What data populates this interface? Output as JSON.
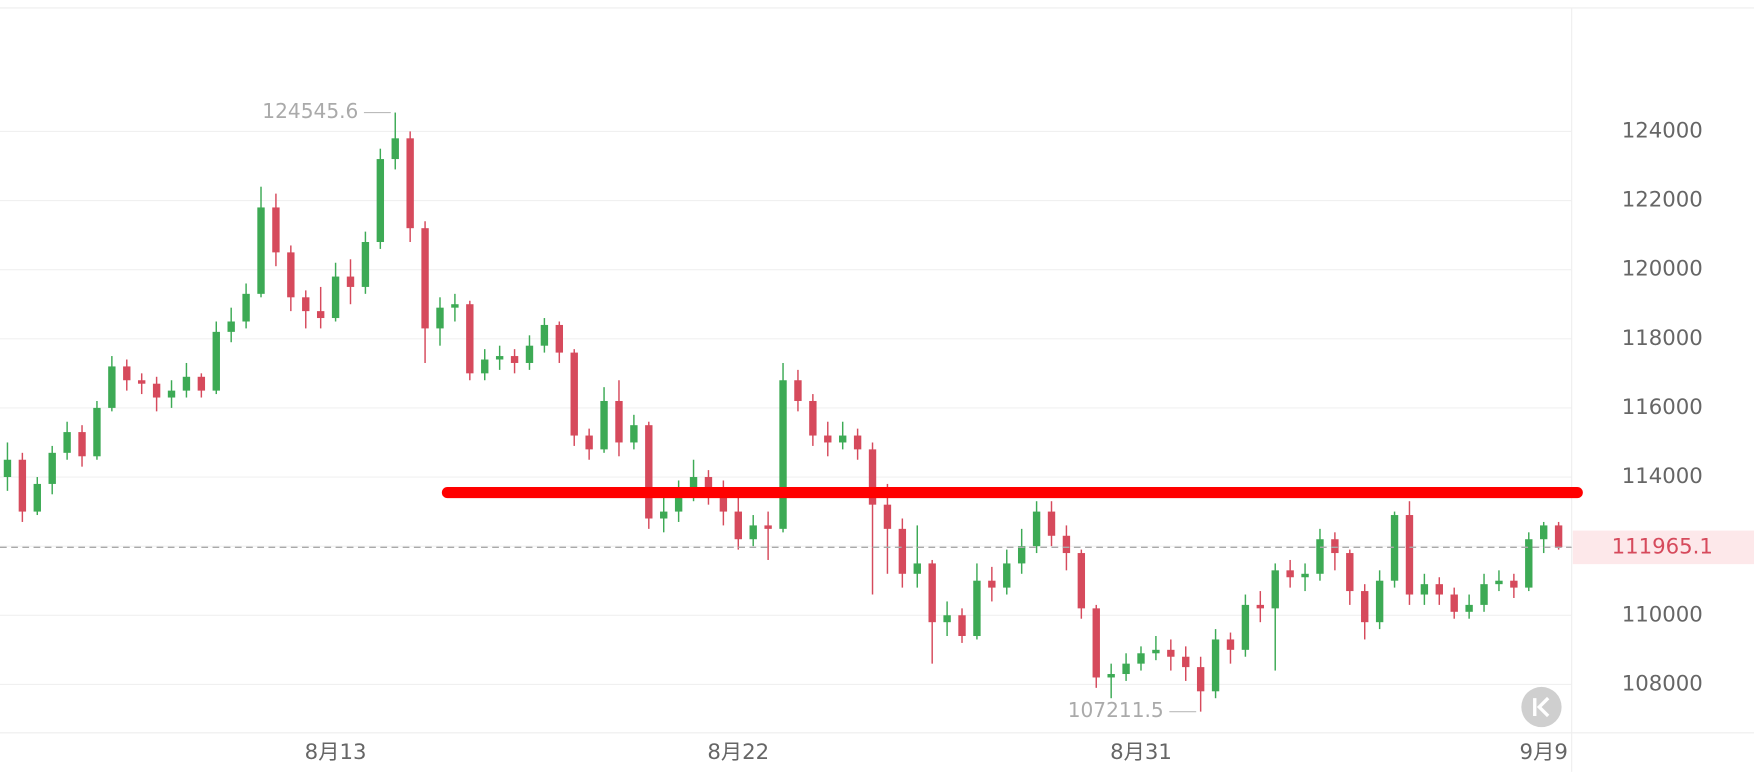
{
  "chart_data": {
    "type": "candlestick",
    "up_color": "#3daa55",
    "down_color": "#d64a5c",
    "ylim": [
      106600,
      127800
    ],
    "yticks": [
      108000,
      110000,
      112000,
      114000,
      116000,
      118000,
      120000,
      122000,
      124000
    ],
    "grid": true,
    "categories": [
      null,
      null,
      null,
      null,
      null,
      null,
      null,
      null,
      null,
      null,
      null,
      null,
      null,
      null,
      null,
      null,
      null,
      null,
      null,
      null,
      null,
      null,
      "8月13",
      null,
      null,
      null,
      null,
      null,
      null,
      null,
      null,
      null,
      null,
      null,
      null,
      null,
      null,
      null,
      null,
      null,
      null,
      null,
      null,
      null,
      null,
      null,
      null,
      null,
      null,
      "8月22",
      null,
      null,
      null,
      null,
      null,
      null,
      null,
      null,
      null,
      null,
      null,
      null,
      null,
      null,
      null,
      null,
      null,
      null,
      null,
      null,
      null,
      null,
      null,
      null,
      null,
      null,
      "8月31",
      null,
      null,
      null,
      null,
      null,
      null,
      null,
      null,
      null,
      null,
      null,
      null,
      null,
      null,
      null,
      null,
      null,
      null,
      null,
      null,
      null,
      null,
      null,
      null,
      null,
      null,
      "9月9",
      null
    ],
    "ohlc": [
      [
        114000,
        115000,
        113600,
        114500
      ],
      [
        114500,
        114700,
        112700,
        113000
      ],
      [
        113000,
        114000,
        112900,
        113800
      ],
      [
        113800,
        114900,
        113500,
        114700
      ],
      [
        114700,
        115600,
        114500,
        115300
      ],
      [
        115300,
        115500,
        114300,
        114600
      ],
      [
        114600,
        116200,
        114500,
        116000
      ],
      [
        116000,
        117500,
        115900,
        117200
      ],
      [
        117200,
        117400,
        116500,
        116800
      ],
      [
        116800,
        117000,
        116400,
        116700
      ],
      [
        116700,
        116900,
        115900,
        116300
      ],
      [
        116300,
        116800,
        116000,
        116500
      ],
      [
        116500,
        117300,
        116300,
        116900
      ],
      [
        116900,
        117000,
        116300,
        116500
      ],
      [
        116500,
        118500,
        116400,
        118200
      ],
      [
        118200,
        118900,
        117900,
        118500
      ],
      [
        118500,
        119600,
        118300,
        119300
      ],
      [
        119300,
        122400,
        119200,
        121800
      ],
      [
        121800,
        122200,
        120100,
        120500
      ],
      [
        120500,
        120700,
        118800,
        119200
      ],
      [
        119200,
        119400,
        118300,
        118800
      ],
      [
        118800,
        119500,
        118300,
        118600
      ],
      [
        118600,
        120200,
        118500,
        119800
      ],
      [
        119800,
        120300,
        119000,
        119500
      ],
      [
        119500,
        121100,
        119300,
        120800
      ],
      [
        120800,
        123500,
        120600,
        123200
      ],
      [
        123200,
        124545.6,
        122900,
        123800
      ],
      [
        123800,
        124000,
        120800,
        121200
      ],
      [
        121200,
        121400,
        117300,
        118300
      ],
      [
        118300,
        119200,
        117800,
        118900
      ],
      [
        118900,
        119300,
        118500,
        119000
      ],
      [
        119000,
        119100,
        116800,
        117000
      ],
      [
        117000,
        117700,
        116800,
        117400
      ],
      [
        117400,
        117800,
        117100,
        117500
      ],
      [
        117500,
        117700,
        117000,
        117300
      ],
      [
        117300,
        118100,
        117100,
        117800
      ],
      [
        117800,
        118600,
        117600,
        118400
      ],
      [
        118400,
        118500,
        117300,
        117600
      ],
      [
        117600,
        117700,
        114900,
        115200
      ],
      [
        115200,
        115400,
        114500,
        114800
      ],
      [
        114800,
        116600,
        114700,
        116200
      ],
      [
        116200,
        116800,
        114600,
        115000
      ],
      [
        115000,
        115800,
        114800,
        115500
      ],
      [
        115500,
        115600,
        112500,
        112800
      ],
      [
        112800,
        113700,
        112400,
        113000
      ],
      [
        113000,
        113900,
        112700,
        113500
      ],
      [
        113500,
        114500,
        113300,
        114000
      ],
      [
        114000,
        114200,
        113200,
        113700
      ],
      [
        113700,
        113900,
        112600,
        113000
      ],
      [
        113000,
        113400,
        111900,
        112200
      ],
      [
        112200,
        112900,
        112000,
        112600
      ],
      [
        112600,
        113000,
        111600,
        112500
      ],
      [
        112500,
        117300,
        112400,
        116800
      ],
      [
        116800,
        117100,
        115900,
        116200
      ],
      [
        116200,
        116400,
        114900,
        115200
      ],
      [
        115200,
        115600,
        114600,
        115000
      ],
      [
        115000,
        115600,
        114800,
        115200
      ],
      [
        115200,
        115400,
        114500,
        114800
      ],
      [
        114800,
        115000,
        110600,
        113200
      ],
      [
        113200,
        113800,
        111200,
        112500
      ],
      [
        112500,
        112800,
        110800,
        111200
      ],
      [
        111200,
        112600,
        110800,
        111500
      ],
      [
        111500,
        111600,
        108600,
        109800
      ],
      [
        109800,
        110400,
        109400,
        110000
      ],
      [
        110000,
        110200,
        109200,
        109400
      ],
      [
        109400,
        111500,
        109300,
        111000
      ],
      [
        111000,
        111400,
        110400,
        110800
      ],
      [
        110800,
        111900,
        110600,
        111500
      ],
      [
        111500,
        112500,
        111200,
        112000
      ],
      [
        112000,
        113300,
        111800,
        113000
      ],
      [
        113000,
        113300,
        112000,
        112300
      ],
      [
        112300,
        112600,
        111300,
        111800
      ],
      [
        111800,
        111900,
        109900,
        110200
      ],
      [
        110200,
        110300,
        107900,
        108200
      ],
      [
        108200,
        108600,
        107600,
        108300
      ],
      [
        108300,
        108900,
        108100,
        108600
      ],
      [
        108600,
        109100,
        108400,
        108900
      ],
      [
        108900,
        109400,
        108700,
        109000
      ],
      [
        109000,
        109300,
        108400,
        108800
      ],
      [
        108800,
        109100,
        108100,
        108500
      ],
      [
        108500,
        108800,
        107211.5,
        107800
      ],
      [
        107800,
        109600,
        107600,
        109300
      ],
      [
        109300,
        109500,
        108600,
        109000
      ],
      [
        109000,
        110600,
        108800,
        110300
      ],
      [
        110300,
        110700,
        109800,
        110200
      ],
      [
        110200,
        111500,
        108400,
        111300
      ],
      [
        111300,
        111600,
        110800,
        111100
      ],
      [
        111100,
        111500,
        110700,
        111200
      ],
      [
        111200,
        112500,
        111000,
        112200
      ],
      [
        112200,
        112400,
        111300,
        111800
      ],
      [
        111800,
        111900,
        110300,
        110700
      ],
      [
        110700,
        110900,
        109300,
        109800
      ],
      [
        109800,
        111300,
        109600,
        111000
      ],
      [
        111000,
        113000,
        110800,
        112900
      ],
      [
        112900,
        113300,
        110300,
        110600
      ],
      [
        110600,
        111200,
        110300,
        110900
      ],
      [
        110900,
        111100,
        110300,
        110600
      ],
      [
        110600,
        110800,
        109900,
        110100
      ],
      [
        110100,
        110600,
        109900,
        110300
      ],
      [
        110300,
        111200,
        110100,
        110900
      ],
      [
        110900,
        111300,
        110700,
        111000
      ],
      [
        111000,
        111200,
        110500,
        110800
      ],
      [
        110800,
        112400,
        110700,
        112200
      ],
      [
        112200,
        112700,
        111800,
        112600
      ],
      [
        112600,
        112700,
        111900,
        111965.1
      ]
    ],
    "reference_lines": [
      {
        "value": 113550,
        "color": "#ff0000"
      }
    ]
  }
}
